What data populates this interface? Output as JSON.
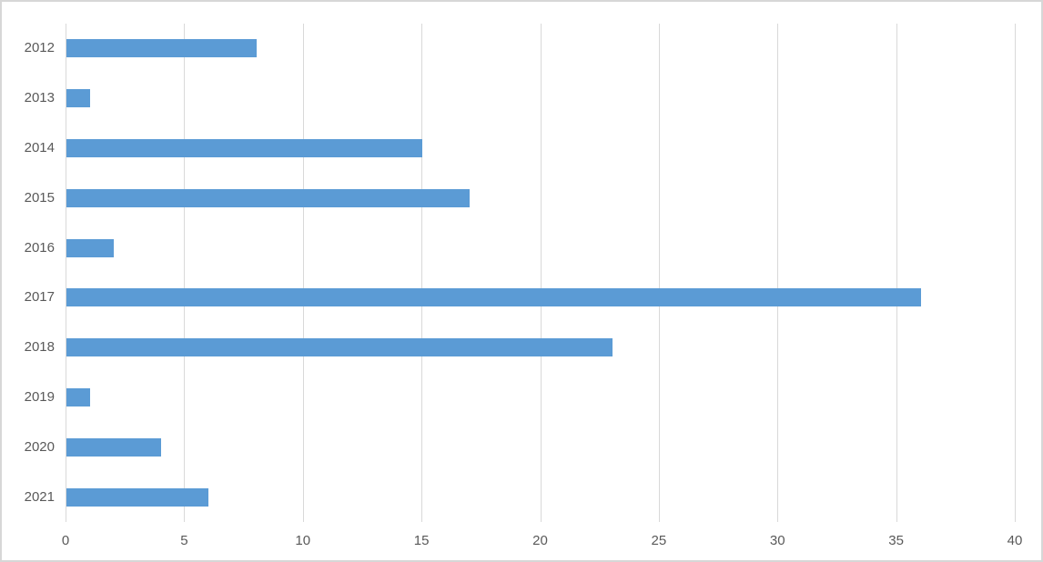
{
  "chart_data": {
    "type": "bar",
    "orientation": "horizontal",
    "title": "",
    "xlabel": "",
    "ylabel": "",
    "categories": [
      "2012",
      "2013",
      "2014",
      "2015",
      "2016",
      "2017",
      "2018",
      "2019",
      "2020",
      "2021"
    ],
    "values": [
      8,
      1,
      15,
      17,
      2,
      36,
      23,
      1,
      4,
      6
    ],
    "xlim": [
      0,
      40
    ],
    "xticks": [
      0,
      5,
      10,
      15,
      20,
      25,
      30,
      35,
      40
    ],
    "xtick_labels": [
      "0",
      "5",
      "10",
      "15",
      "20",
      "25",
      "30",
      "35",
      "40"
    ],
    "grid": true,
    "legend": false,
    "colors": {
      "bar": "#5B9BD5",
      "gridline": "#D9D9D9",
      "label": "#595959",
      "frame_border": "#D7D7D7",
      "background": "#FFFFFF"
    }
  }
}
